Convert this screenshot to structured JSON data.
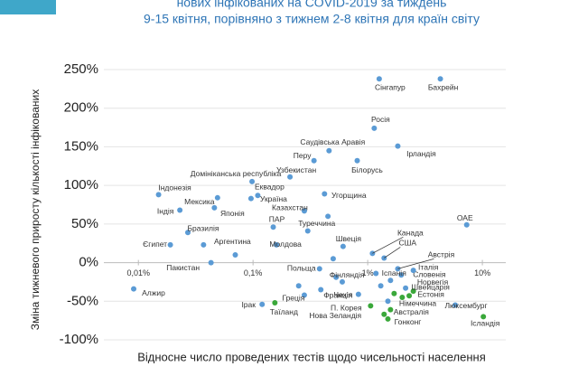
{
  "chart_data": {
    "type": "scatter",
    "title": "нових інфікованих на COVID-2019 за тиждень",
    "subtitle": "9-15 квітня, порівняно з тижнем 2-8 квітня для країн світу",
    "x_label": "Відносне число проведених тестів щодо чисельності населення",
    "y_label": "Зміна тижневого приросту кількості інфікованих",
    "xscale": "log",
    "grid": true,
    "xlim": [
      0.005,
      16
    ],
    "ylim": [
      -100,
      250
    ],
    "xticks": [
      {
        "value": 0.01,
        "label": "0,01%"
      },
      {
        "value": 0.1,
        "label": "0,1%"
      },
      {
        "value": 1,
        "label": "1%"
      },
      {
        "value": 10,
        "label": "10%"
      }
    ],
    "yticks": [
      {
        "value": -100,
        "label": "-100%"
      },
      {
        "value": -50,
        "label": "-50%"
      },
      {
        "value": 0,
        "label": "0%"
      },
      {
        "value": 50,
        "label": "50%"
      },
      {
        "value": 100,
        "label": "100%"
      },
      {
        "value": 150,
        "label": "150%"
      },
      {
        "value": 200,
        "label": "200%"
      },
      {
        "value": 250,
        "label": "250%"
      }
    ],
    "series": [
      {
        "color": "#5b9bd5",
        "x": [
          1.26,
          4.3,
          1.14,
          1.83,
          0.46,
          0.34,
          0.81,
          0.21,
          0.015,
          0.098,
          0.11,
          0.049,
          0.096,
          0.42,
          0.023,
          0.046,
          0.28,
          0.15,
          0.3,
          7.3,
          0.027,
          0.019,
          0.037,
          0.16,
          0.61,
          1.1,
          1.39,
          0.043,
          0.38,
          1.83,
          1.96,
          0.53,
          1.18,
          1.58,
          2.14,
          1.5,
          0.0091,
          0.83,
          0.28,
          0.39,
          0.12,
          5.8,
          0.07,
          0.5,
          0.6,
          2.5,
          0.45,
          1.3,
          0.25
        ],
        "values": [
          238,
          238,
          174,
          151,
          145,
          132,
          132,
          111,
          88,
          105,
          87,
          84,
          83,
          89,
          68,
          71,
          67,
          46,
          41,
          49,
          39,
          23,
          23,
          23,
          21,
          12,
          6,
          0,
          -8,
          -8,
          -16,
          -19,
          -14,
          -23,
          -33,
          -50,
          -34,
          -41,
          -42,
          -35,
          -54,
          -55,
          10,
          5,
          -25,
          -10,
          60,
          -30,
          -30
        ],
        "labels": [
          "Сінгапур",
          "Бахрейн",
          "Росія",
          "Ірландія",
          "Саудівська Аравія",
          "Перу",
          "Білорусь",
          "Узбекистан",
          "Індонезія",
          "Домініканська республіка",
          "Еквадор",
          "Мексика",
          "Україна",
          "Угорщина",
          "Індія",
          "Японія",
          "Казахстан",
          "ПАР",
          "Туреччина",
          "ОАЕ",
          "Бразилія",
          "Єгипет",
          "Аргентина",
          "Молдова",
          "Швеція",
          "Канада",
          "США",
          "Пакистан",
          "Польща",
          "Австрія",
          "Італія",
          "Фінляндія",
          "Іспанія",
          "Словенія",
          "Норвегія",
          "Німеччина",
          "Алжир",
          "Чехія",
          "Греція",
          "Франція",
          "Ірак",
          "Люксембург",
          null,
          null,
          null,
          null,
          null,
          null,
          null
        ]
      },
      {
        "color": "#3aa83a",
        "x": [
          2.5,
          2.3,
          0.155,
          1.06,
          1.58,
          1.39,
          1.5,
          10.2,
          2.0,
          1.7
        ],
        "values": [
          -37,
          -43,
          -52,
          -56,
          -61,
          -67,
          -73,
          -70,
          -45,
          -40
        ],
        "labels": [
          "Швейцарія",
          "Естонія",
          "Таїланд",
          "П. Корея",
          "Австралія",
          "Нова Зеландія",
          "Гонконг",
          "Ісландія",
          null,
          null
        ]
      }
    ]
  }
}
